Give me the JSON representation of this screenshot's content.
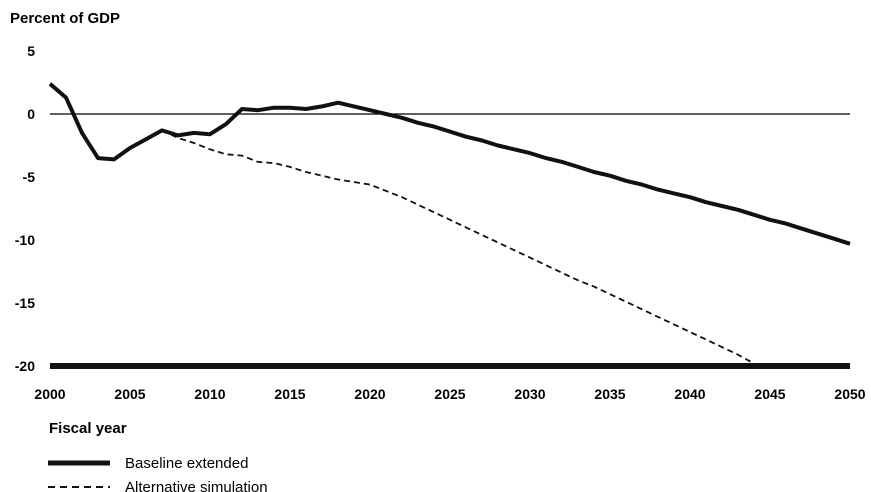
{
  "chart_data": {
    "type": "line",
    "ylabel": "Percent of GDP",
    "xlabel": "Fiscal year",
    "xlim": [
      2000,
      2050
    ],
    "ylim": [
      -20,
      5
    ],
    "x_ticks": [
      2000,
      2005,
      2010,
      2015,
      2020,
      2025,
      2030,
      2035,
      2040,
      2045,
      2050
    ],
    "y_ticks": [
      5,
      0,
      -5,
      -10,
      -15,
      -20
    ],
    "x_tick_labels": [
      "2000",
      "2005",
      "2010",
      "2015",
      "2020",
      "2025",
      "2030",
      "2035",
      "2040",
      "2045",
      "2050"
    ],
    "y_tick_labels": [
      "5",
      "0",
      "-5",
      "-10",
      "-15",
      "-20"
    ],
    "grid": false,
    "legend_position": "bottom-left",
    "series": [
      {
        "name": "Baseline extended",
        "style": "solid",
        "color": "#111111",
        "x": [
          2000,
          2001,
          2002,
          2003,
          2004,
          2005,
          2006,
          2007,
          2008,
          2009,
          2010,
          2011,
          2012,
          2013,
          2014,
          2015,
          2016,
          2017,
          2018,
          2019,
          2020,
          2021,
          2022,
          2023,
          2024,
          2025,
          2026,
          2027,
          2028,
          2029,
          2030,
          2031,
          2032,
          2033,
          2034,
          2035,
          2036,
          2037,
          2038,
          2039,
          2040,
          2041,
          2042,
          2043,
          2044,
          2045,
          2046,
          2047,
          2048,
          2049,
          2050
        ],
        "values": [
          2.4,
          1.3,
          -1.5,
          -3.5,
          -3.6,
          -2.7,
          -2.0,
          -1.3,
          -1.7,
          -1.5,
          -1.6,
          -0.8,
          0.4,
          0.3,
          0.5,
          0.5,
          0.4,
          0.6,
          0.9,
          0.6,
          0.3,
          0.0,
          -0.3,
          -0.7,
          -1.0,
          -1.4,
          -1.8,
          -2.1,
          -2.5,
          -2.8,
          -3.1,
          -3.5,
          -3.8,
          -4.2,
          -4.6,
          -4.9,
          -5.3,
          -5.6,
          -6.0,
          -6.3,
          -6.6,
          -7.0,
          -7.3,
          -7.6,
          -8.0,
          -8.4,
          -8.7,
          -9.1,
          -9.5,
          -9.9,
          -10.3
        ]
      },
      {
        "name": "Alternative simulation",
        "style": "dashed",
        "color": "#111111",
        "x": [
          2007,
          2008,
          2009,
          2010,
          2011,
          2012,
          2013,
          2014,
          2015,
          2016,
          2017,
          2018,
          2019,
          2020,
          2021,
          2022,
          2023,
          2024,
          2025,
          2026,
          2027,
          2028,
          2029,
          2030,
          2031,
          2032,
          2033,
          2034,
          2035,
          2036,
          2037,
          2038,
          2039,
          2040,
          2041,
          2042,
          2043,
          2044
        ],
        "values": [
          -1.3,
          -1.9,
          -2.3,
          -2.8,
          -3.2,
          -3.3,
          -3.8,
          -3.9,
          -4.2,
          -4.6,
          -4.9,
          -5.2,
          -5.4,
          -5.6,
          -6.1,
          -6.6,
          -7.2,
          -7.8,
          -8.4,
          -9.0,
          -9.6,
          -10.2,
          -10.8,
          -11.4,
          -12.0,
          -12.6,
          -13.2,
          -13.7,
          -14.3,
          -14.9,
          -15.5,
          -16.1,
          -16.7,
          -17.3,
          -17.9,
          -18.5,
          -19.1,
          -19.8
        ]
      }
    ]
  }
}
